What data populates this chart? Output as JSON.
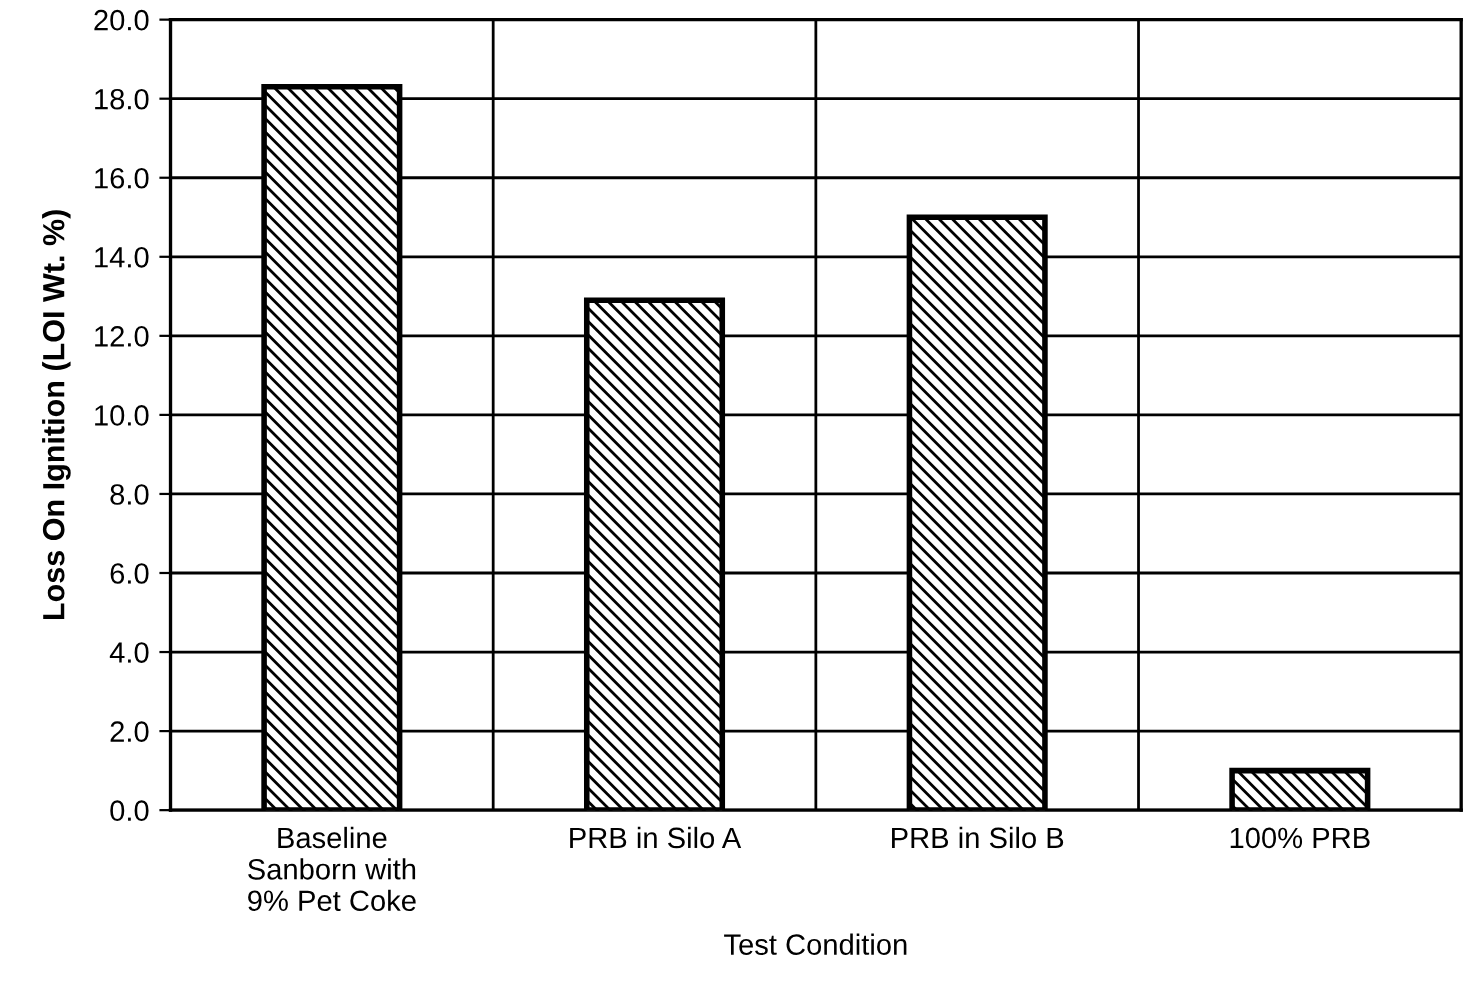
{
  "chart_data": {
    "type": "bar",
    "xlabel": "Test Condition",
    "ylabel": "Loss On Ignition (LOI Wt. %)",
    "categories": [
      "Baseline\nSanborn with\n9% Pet Coke",
      "PRB in Silo A",
      "PRB in Silo B",
      "100% PRB"
    ],
    "values": [
      18.3,
      12.9,
      15.0,
      1.0
    ],
    "color": "#000000",
    "ylim": [
      0,
      20
    ],
    "yticks": [
      {
        "value": 0,
        "label": "0.0"
      },
      {
        "value": 2,
        "label": "2.0"
      },
      {
        "value": 4,
        "label": "4.0"
      },
      {
        "value": 6,
        "label": "6.0"
      },
      {
        "value": 8,
        "label": "8.0"
      },
      {
        "value": 10,
        "label": "10.0"
      },
      {
        "value": 12,
        "label": "12.0"
      },
      {
        "value": 14,
        "label": "14.0"
      },
      {
        "value": 16,
        "label": "16.0"
      },
      {
        "value": 18,
        "label": "18.0"
      },
      {
        "value": 20,
        "label": "20.0"
      }
    ],
    "grid": true
  }
}
